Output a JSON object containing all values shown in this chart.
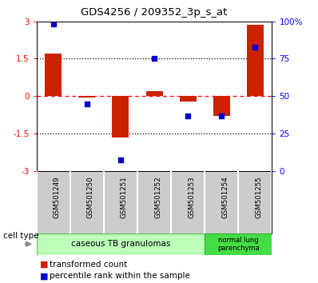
{
  "title": "GDS4256 / 209352_3p_s_at",
  "samples": [
    "GSM501249",
    "GSM501250",
    "GSM501251",
    "GSM501252",
    "GSM501253",
    "GSM501254",
    "GSM501255"
  ],
  "transformed_count": [
    1.7,
    -0.05,
    -1.65,
    0.2,
    -0.2,
    -0.8,
    2.85
  ],
  "percentile_rank_scaled": [
    2.88,
    -0.3,
    -2.56,
    1.5,
    -0.8,
    -0.8,
    1.96
  ],
  "ylim": [
    -3,
    3
  ],
  "yticks_left": [
    -3,
    -1.5,
    0,
    1.5,
    3
  ],
  "ytick_labels_left": [
    "-3",
    "-1.5",
    "0",
    "1.5",
    "3"
  ],
  "ytick_labels_right": [
    "0",
    "25",
    "50",
    "75",
    "100%"
  ],
  "bar_color": "#cc2200",
  "dot_color": "#0000cc",
  "cell_type_1_label": "caseous TB granulomas",
  "cell_type_1_n": 5,
  "cell_type_1_color": "#bbffbb",
  "cell_type_2_label": "normal lung\nparenchyma",
  "cell_type_2_n": 2,
  "cell_type_2_color": "#44dd44",
  "legend_red_label": "transformed count",
  "legend_blue_label": "percentile rank within the sample",
  "cell_type_label": "cell type",
  "bg_xtick": "#cccccc"
}
